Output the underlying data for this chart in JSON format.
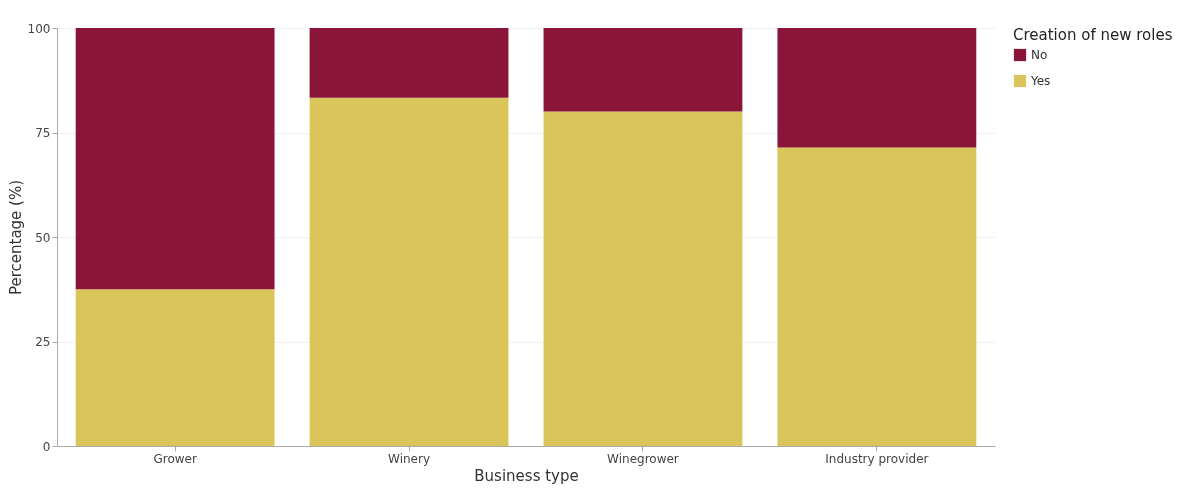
{
  "chart_data": {
    "type": "bar",
    "stacked": true,
    "xlabel": "Business type",
    "ylabel": "Percentage (%)",
    "legend_title": "Creation of new roles",
    "legend": "top right",
    "grid": "y",
    "categories": [
      "Grower",
      "Winery",
      "Winegrower",
      "Industry provider"
    ],
    "ylim": [
      0,
      100
    ],
    "yticks": [
      0,
      25,
      50,
      75,
      100
    ],
    "series": [
      {
        "name": "Yes",
        "color": "#d9c55a",
        "values": [
          37.5,
          83.3,
          80,
          71.4
        ]
      },
      {
        "name": "No",
        "color": "#8a1538",
        "values": [
          62.5,
          16.7,
          20,
          28.6
        ]
      }
    ]
  }
}
